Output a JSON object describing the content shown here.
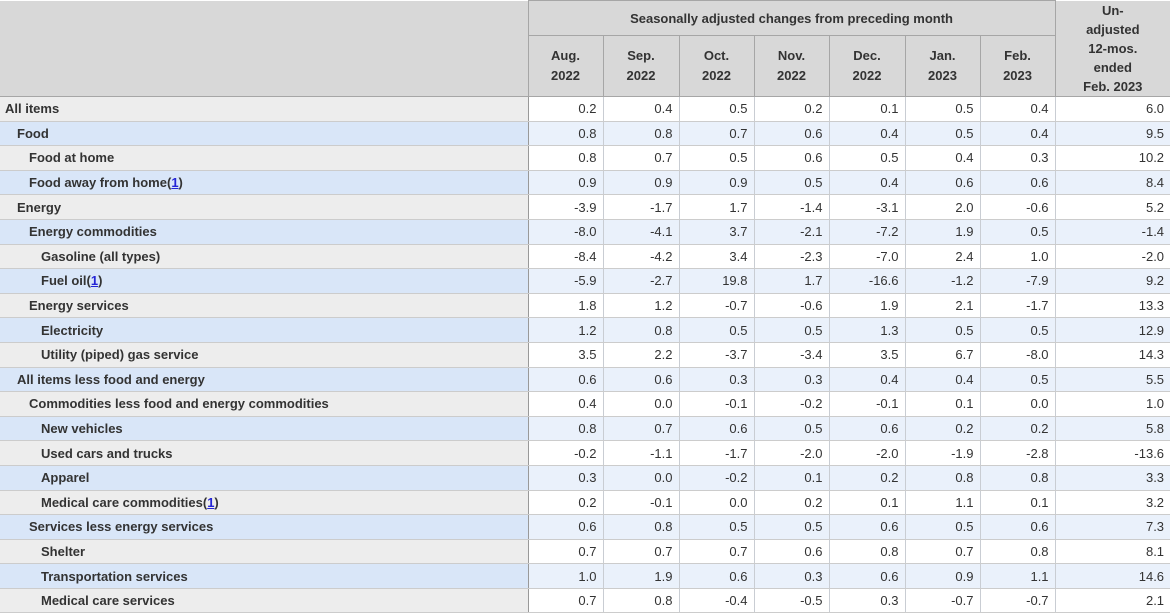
{
  "table": {
    "header": {
      "group_title": "Seasonally adjusted changes from preceding month",
      "months": [
        "Aug.\n2022",
        "Sep.\n2022",
        "Oct.\n2022",
        "Nov.\n2022",
        "Dec.\n2022",
        "Jan.\n2023",
        "Feb.\n2023"
      ],
      "unadjusted_label": "Un-\nadjusted\n12-mos.\nended\nFeb. 2023"
    },
    "colors": {
      "header_bg": "#d8d8d8",
      "header_border": "#a6a6a6",
      "row_white_label_bg": "#ededed",
      "row_white_data_bg": "#ffffff",
      "row_blue_label_bg": "#d9e6f8",
      "row_blue_data_bg": "#eaf1fb",
      "body_border": "#cccccc",
      "text": "#333333",
      "footnote_link": "#2424d6"
    }
  },
  "chart_data": {
    "type": "table",
    "title": "Seasonally adjusted changes from preceding month",
    "columns": [
      "Aug. 2022",
      "Sep. 2022",
      "Oct. 2022",
      "Nov. 2022",
      "Dec. 2022",
      "Jan. 2023",
      "Feb. 2023",
      "Unadjusted 12-mos. ended Feb. 2023"
    ],
    "rows": [
      {
        "label": "All items",
        "indent": 0,
        "footnote": null,
        "values": [
          0.2,
          0.4,
          0.5,
          0.2,
          0.1,
          0.5,
          0.4,
          6.0
        ]
      },
      {
        "label": "Food",
        "indent": 1,
        "footnote": null,
        "values": [
          0.8,
          0.8,
          0.7,
          0.6,
          0.4,
          0.5,
          0.4,
          9.5
        ]
      },
      {
        "label": "Food at home",
        "indent": 2,
        "footnote": null,
        "values": [
          0.8,
          0.7,
          0.5,
          0.6,
          0.5,
          0.4,
          0.3,
          10.2
        ]
      },
      {
        "label": "Food away from home",
        "indent": 2,
        "footnote": "1",
        "values": [
          0.9,
          0.9,
          0.9,
          0.5,
          0.4,
          0.6,
          0.6,
          8.4
        ]
      },
      {
        "label": "Energy",
        "indent": 1,
        "footnote": null,
        "values": [
          -3.9,
          -1.7,
          1.7,
          -1.4,
          -3.1,
          2.0,
          -0.6,
          5.2
        ]
      },
      {
        "label": "Energy commodities",
        "indent": 2,
        "footnote": null,
        "values": [
          -8.0,
          -4.1,
          3.7,
          -2.1,
          -7.2,
          1.9,
          0.5,
          -1.4
        ]
      },
      {
        "label": "Gasoline (all types)",
        "indent": 3,
        "footnote": null,
        "values": [
          -8.4,
          -4.2,
          3.4,
          -2.3,
          -7.0,
          2.4,
          1.0,
          -2.0
        ]
      },
      {
        "label": "Fuel oil",
        "indent": 3,
        "footnote": "1",
        "values": [
          -5.9,
          -2.7,
          19.8,
          1.7,
          -16.6,
          -1.2,
          -7.9,
          9.2
        ]
      },
      {
        "label": "Energy services",
        "indent": 2,
        "footnote": null,
        "values": [
          1.8,
          1.2,
          -0.7,
          -0.6,
          1.9,
          2.1,
          -1.7,
          13.3
        ]
      },
      {
        "label": "Electricity",
        "indent": 3,
        "footnote": null,
        "values": [
          1.2,
          0.8,
          0.5,
          0.5,
          1.3,
          0.5,
          0.5,
          12.9
        ]
      },
      {
        "label": "Utility (piped) gas service",
        "indent": 3,
        "footnote": null,
        "values": [
          3.5,
          2.2,
          -3.7,
          -3.4,
          3.5,
          6.7,
          -8.0,
          14.3
        ]
      },
      {
        "label": "All items less food and energy",
        "indent": 1,
        "footnote": null,
        "values": [
          0.6,
          0.6,
          0.3,
          0.3,
          0.4,
          0.4,
          0.5,
          5.5
        ]
      },
      {
        "label": "Commodities less food and energy commodities",
        "indent": 2,
        "footnote": null,
        "values": [
          0.4,
          0.0,
          -0.1,
          -0.2,
          -0.1,
          0.1,
          0.0,
          1.0
        ]
      },
      {
        "label": "New vehicles",
        "indent": 3,
        "footnote": null,
        "values": [
          0.8,
          0.7,
          0.6,
          0.5,
          0.6,
          0.2,
          0.2,
          5.8
        ]
      },
      {
        "label": "Used cars and trucks",
        "indent": 3,
        "footnote": null,
        "values": [
          -0.2,
          -1.1,
          -1.7,
          -2.0,
          -2.0,
          -1.9,
          -2.8,
          -13.6
        ]
      },
      {
        "label": "Apparel",
        "indent": 3,
        "footnote": null,
        "values": [
          0.3,
          0.0,
          -0.2,
          0.1,
          0.2,
          0.8,
          0.8,
          3.3
        ]
      },
      {
        "label": "Medical care commodities",
        "indent": 3,
        "footnote": "1",
        "values": [
          0.2,
          -0.1,
          0.0,
          0.2,
          0.1,
          1.1,
          0.1,
          3.2
        ]
      },
      {
        "label": "Services less energy services",
        "indent": 2,
        "footnote": null,
        "values": [
          0.6,
          0.8,
          0.5,
          0.5,
          0.6,
          0.5,
          0.6,
          7.3
        ]
      },
      {
        "label": "Shelter",
        "indent": 3,
        "footnote": null,
        "values": [
          0.7,
          0.7,
          0.7,
          0.6,
          0.8,
          0.7,
          0.8,
          8.1
        ]
      },
      {
        "label": "Transportation services",
        "indent": 3,
        "footnote": null,
        "values": [
          1.0,
          1.9,
          0.6,
          0.3,
          0.6,
          0.9,
          1.1,
          14.6
        ]
      },
      {
        "label": "Medical care services",
        "indent": 3,
        "footnote": null,
        "values": [
          0.7,
          0.8,
          -0.4,
          -0.5,
          0.3,
          -0.7,
          -0.7,
          2.1
        ]
      }
    ]
  }
}
